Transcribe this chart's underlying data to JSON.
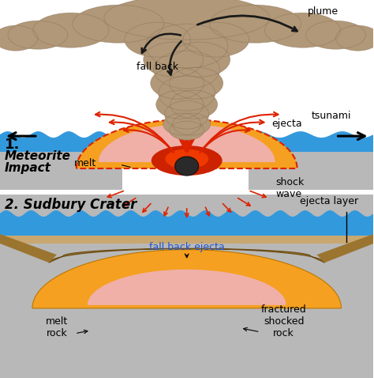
{
  "bg_color": "#ffffff",
  "gray_color": "#aaaaaa",
  "blue_color": "#3399dd",
  "blue_dark": "#1177bb",
  "orange_color": "#f5a020",
  "pink_color": "#f0b0a8",
  "brown_color": "#9b7530",
  "tan_color": "#c8a870",
  "red_color": "#dd2200",
  "dark_gray": "#555555",
  "plume_color": "#b09878",
  "plume_edge": "#8a7055",
  "ground_color": "#b8b8b8",
  "label_plume": "plume",
  "label_fall_back": "fall back",
  "label_ejecta": "ejecta",
  "label_tsunami": "tsunami",
  "label_melt": "melt",
  "label_shock_wave": "shock\nwave",
  "label_fall_back_ejecta": "fall back ejecta",
  "label_melt_rock": "melt\nrock",
  "label_fractured": "fractured\nshocked\nrock",
  "label_ejecta_layer": "ejecta layer",
  "p1_label_num": "1.",
  "p1_label_word1": "Meteorite",
  "p1_label_word2": "Impact",
  "p2_label": "2. Sudbury Crater"
}
